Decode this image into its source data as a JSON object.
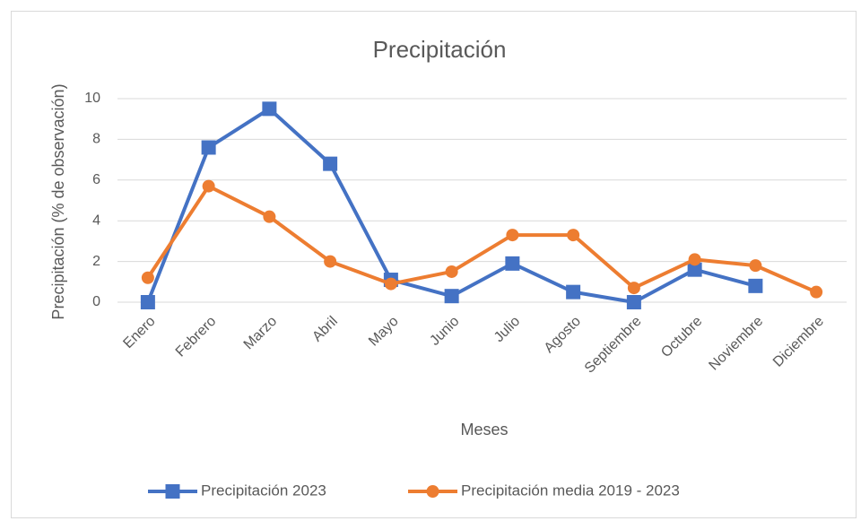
{
  "chart_data": {
    "type": "line",
    "title": "Precipitación",
    "x_label": "Meses",
    "y_label": "Precipitación (% de observación)",
    "categories": [
      "Enero",
      "Febrero",
      "Marzo",
      "Abril",
      "Mayo",
      "Junio",
      "Julio",
      "Agosto",
      "Septiembre",
      "Octubre",
      "Noviembre",
      "Diciembre"
    ],
    "series": [
      {
        "name": "Precipitación 2023",
        "color": "#4472c4",
        "marker": "square",
        "values": [
          0,
          7.6,
          9.5,
          6.8,
          1.1,
          0.3,
          1.9,
          0.5,
          0,
          1.6,
          0.8,
          null
        ]
      },
      {
        "name": "Precipitación media 2019 - 2023",
        "color": "#ed7d31",
        "marker": "circle",
        "values": [
          1.2,
          5.7,
          4.2,
          2.0,
          0.9,
          1.5,
          3.3,
          3.3,
          0.7,
          2.1,
          1.8,
          0.5
        ]
      }
    ],
    "ylim": [
      0,
      10
    ],
    "yticks": [
      0,
      2,
      4,
      6,
      8,
      10
    ],
    "grid": true,
    "legend": "bottom"
  }
}
